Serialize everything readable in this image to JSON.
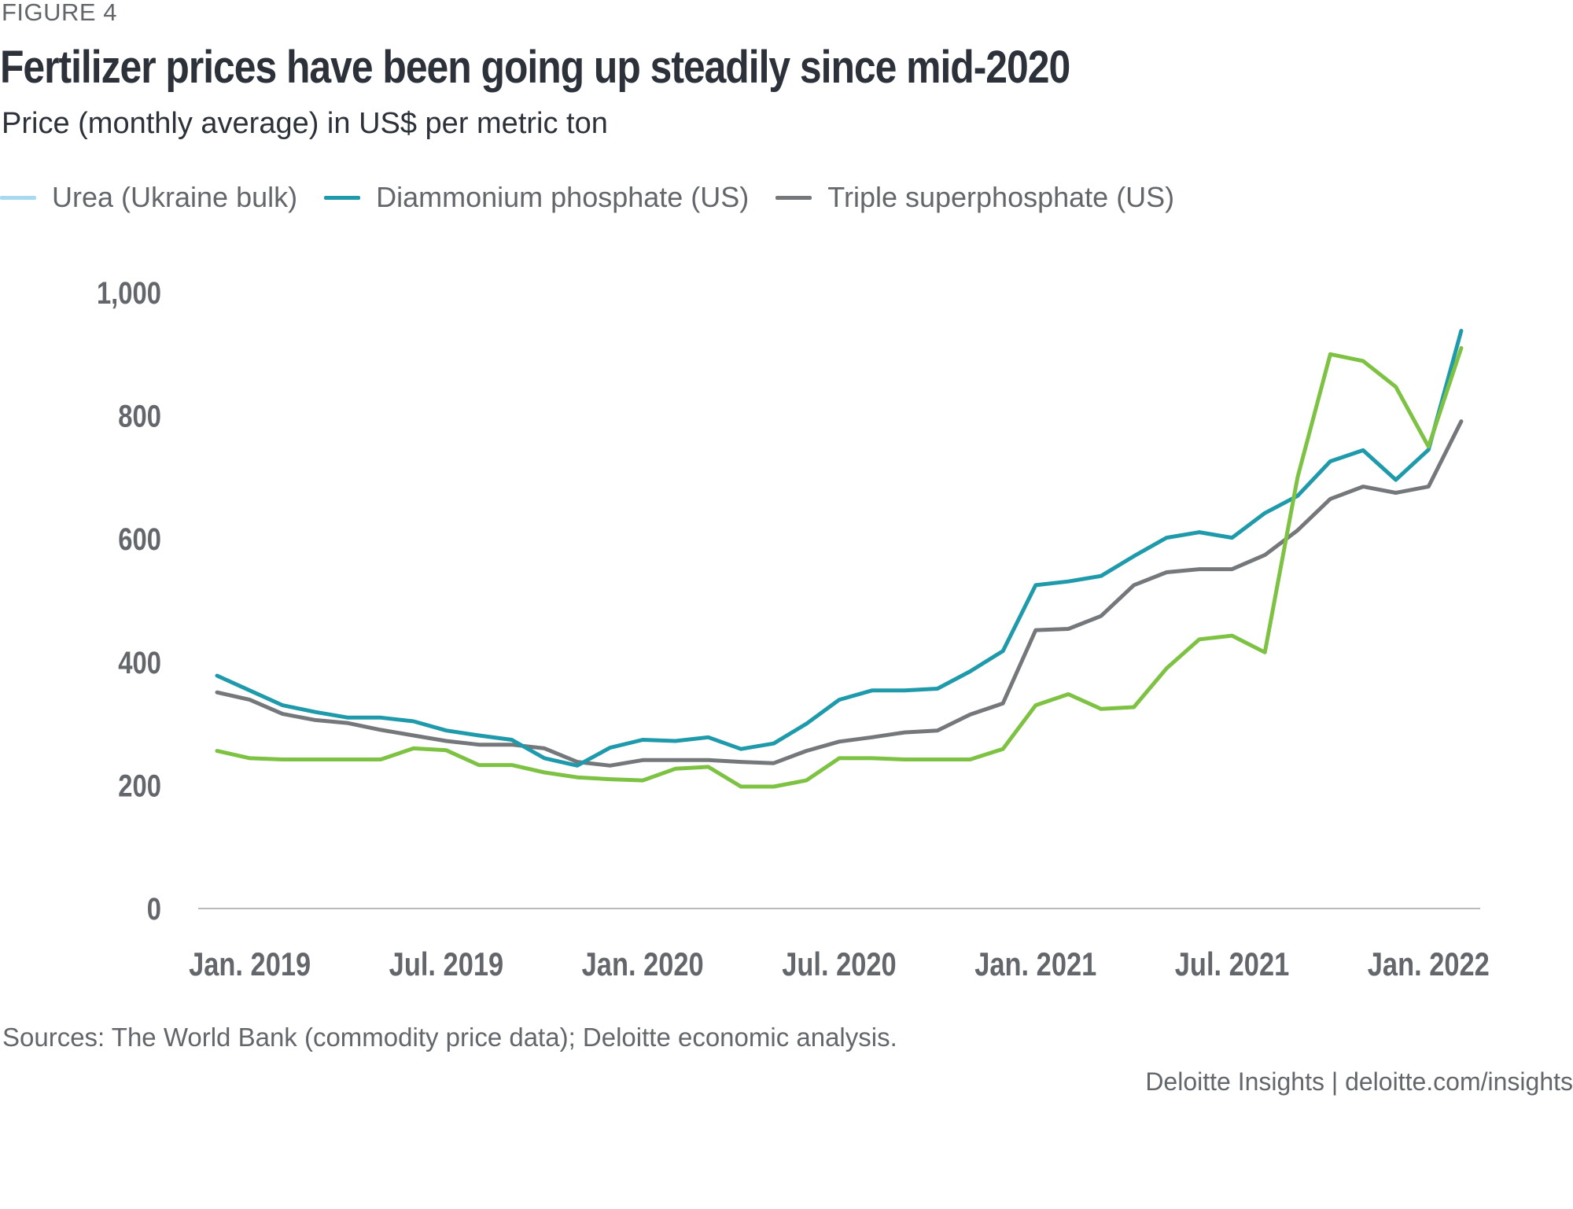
{
  "figure_label": "FIGURE 4",
  "title": "Fertilizer prices have been going up steadily since mid-2020",
  "subtitle": "Price (monthly average) in US$ per metric ton",
  "legend": [
    {
      "label": "Urea (Ukraine bulk)",
      "color": "#a7daf1"
    },
    {
      "label": "Diammonium phosphate (US)",
      "color": "#1f9aab"
    },
    {
      "label": "Triple superphosphate (US)",
      "color": "#75787b"
    }
  ],
  "source": "Sources: The World Bank (commodity price data); Deloitte economic analysis.",
  "credit": "Deloitte Insights | deloitte.com/insights",
  "chart_data": {
    "type": "line",
    "title": "Fertilizer prices have been going up steadily since mid-2020",
    "subtitle": "Price (monthly average) in US$ per metric ton",
    "xlabel": "",
    "ylabel": "",
    "ylim": [
      0,
      1000
    ],
    "yticks": [
      0,
      200,
      400,
      600,
      800,
      1000
    ],
    "ytick_labels": [
      "0",
      "200",
      "400",
      "600",
      "800",
      "1,000"
    ],
    "x": [
      "Dec 2018",
      "Jan 2019",
      "Feb 2019",
      "Mar 2019",
      "Apr 2019",
      "May 2019",
      "Jun 2019",
      "Jul 2019",
      "Aug 2019",
      "Sep 2019",
      "Oct 2019",
      "Nov 2019",
      "Dec 2019",
      "Jan 2020",
      "Feb 2020",
      "Mar 2020",
      "Apr 2020",
      "May 2020",
      "Jun 2020",
      "Jul 2020",
      "Aug 2020",
      "Sep 2020",
      "Oct 2020",
      "Nov 2020",
      "Dec 2020",
      "Jan 2021",
      "Feb 2021",
      "Mar 2021",
      "Apr 2021",
      "May 2021",
      "Jun 2021",
      "Jul 2021",
      "Aug 2021",
      "Sep 2021",
      "Oct 2021",
      "Nov 2021",
      "Dec 2021",
      "Jan 2022",
      "Feb 2022"
    ],
    "xticks": [
      {
        "label": "Jan. 2019",
        "index": 1
      },
      {
        "label": "Jul. 2019",
        "index": 7
      },
      {
        "label": "Jan. 2020",
        "index": 13
      },
      {
        "label": "Jul. 2020",
        "index": 19
      },
      {
        "label": "Jan. 2021",
        "index": 25
      },
      {
        "label": "Jul. 2021",
        "index": 31
      },
      {
        "label": "Jan. 2022",
        "index": 37
      }
    ],
    "grid": false,
    "legend_position": "top-left",
    "series": [
      {
        "name": "Urea (Ukraine bulk)",
        "legend_color": "#a7daf1",
        "line_color": "#7dc242",
        "values": [
          256,
          244,
          242,
          242,
          242,
          242,
          260,
          257,
          233,
          233,
          221,
          213,
          210,
          208,
          227,
          230,
          198,
          198,
          208,
          244,
          244,
          242,
          242,
          242,
          259,
          330,
          348,
          324,
          327,
          390,
          437,
          443,
          416,
          700,
          900,
          889,
          847,
          750,
          910
        ]
      },
      {
        "name": "Diammonium phosphate (US)",
        "legend_color": "#1f9aab",
        "line_color": "#1f9aab",
        "values": [
          378,
          354,
          330,
          319,
          310,
          310,
          304,
          289,
          281,
          274,
          244,
          232,
          261,
          274,
          272,
          278,
          259,
          268,
          300,
          339,
          354,
          354,
          357,
          385,
          418,
          525,
          531,
          540,
          572,
          602,
          611,
          602,
          642,
          670,
          726,
          744,
          696,
          745,
          938
        ]
      },
      {
        "name": "Triple superphosphate (US)",
        "legend_color": "#75787b",
        "line_color": "#75787b",
        "values": [
          351,
          339,
          316,
          306,
          301,
          290,
          281,
          272,
          266,
          266,
          260,
          238,
          232,
          241,
          241,
          241,
          238,
          236,
          256,
          271,
          278,
          286,
          289,
          315,
          333,
          452,
          454,
          475,
          525,
          546,
          551,
          551,
          574,
          614,
          665,
          685,
          675,
          685,
          791
        ]
      }
    ]
  }
}
